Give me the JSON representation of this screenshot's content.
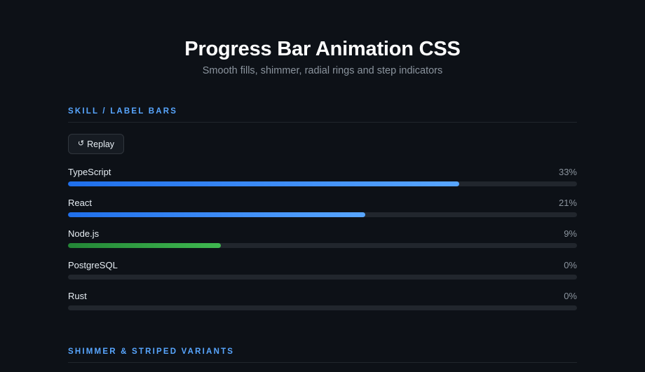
{
  "header": {
    "title": "Progress Bar Animation CSS",
    "subtitle": "Smooth fills, shimmer, radial rings and step indicators"
  },
  "sections": [
    {
      "heading": "Skill / Label Bars"
    },
    {
      "heading": "Shimmer & Striped Variants"
    }
  ],
  "replay": {
    "icon": "↺",
    "label": "Replay",
    "icon_name": "replay-icon"
  },
  "skills": [
    {
      "label": "TypeScript",
      "percent_text": "33%",
      "fill_fraction": 0.768,
      "color": "blue"
    },
    {
      "label": "React",
      "percent_text": "21%",
      "fill_fraction": 0.584,
      "color": "blue"
    },
    {
      "label": "Node.js",
      "percent_text": "9%",
      "fill_fraction": 0.3,
      "color": "green"
    },
    {
      "label": "PostgreSQL",
      "percent_text": "0%",
      "fill_fraction": 0.0,
      "color": "blue"
    },
    {
      "label": "Rust",
      "percent_text": "0%",
      "fill_fraction": 0.0,
      "color": "blue"
    }
  ],
  "colors": {
    "background": "#0d1117",
    "accent": "#58a6ff",
    "blue_fill_start": "#1f6feb",
    "blue_fill_end": "#58a6ff",
    "green_fill_start": "#238636",
    "green_fill_end": "#3fb950",
    "track": "#21262d"
  }
}
